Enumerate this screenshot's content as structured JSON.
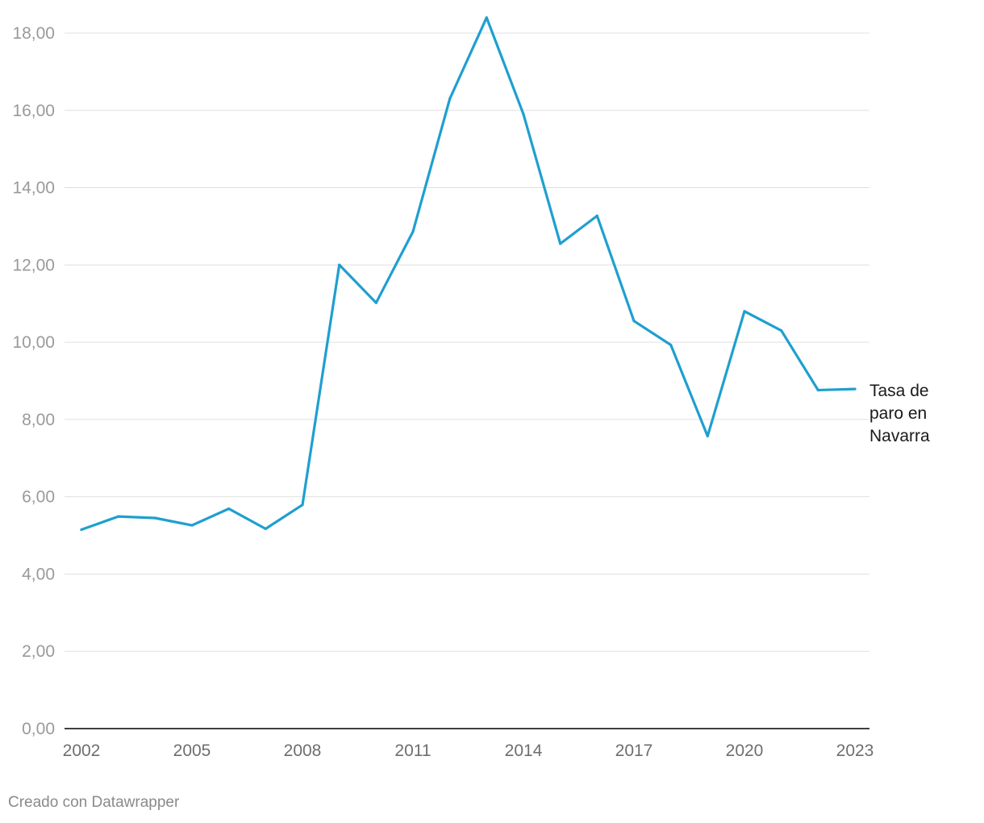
{
  "chart_data": {
    "type": "line",
    "title": "",
    "xlabel": "",
    "ylabel": "",
    "x": [
      2002,
      2003,
      2004,
      2005,
      2006,
      2007,
      2008,
      2009,
      2010,
      2011,
      2012,
      2013,
      2014,
      2015,
      2016,
      2017,
      2018,
      2019,
      2020,
      2021,
      2022,
      2023
    ],
    "series": [
      {
        "name": "Tasa de paro en Navarra",
        "label_lines": [
          "Tasa de",
          "paro en",
          "Navarra"
        ],
        "color": "#1f9fd0",
        "values": [
          5.15,
          5.49,
          5.45,
          5.26,
          5.69,
          5.17,
          5.79,
          12.0,
          11.02,
          12.86,
          16.3,
          18.4,
          15.9,
          12.55,
          13.27,
          10.55,
          9.93,
          7.57,
          10.8,
          10.3,
          8.76,
          8.79
        ]
      }
    ],
    "y_ticks": [
      "0,00",
      "2,00",
      "4,00",
      "6,00",
      "8,00",
      "10,00",
      "12,00",
      "14,00",
      "16,00",
      "18,00"
    ],
    "y_tick_values": [
      0,
      2,
      4,
      6,
      8,
      10,
      12,
      14,
      16,
      18
    ],
    "x_ticks": [
      "2002",
      "2005",
      "2008",
      "2011",
      "2014",
      "2017",
      "2020",
      "2023"
    ],
    "x_tick_values": [
      2002,
      2005,
      2008,
      2011,
      2014,
      2017,
      2020,
      2023
    ],
    "ylim": [
      0,
      18
    ],
    "xlim": [
      2002,
      2023
    ],
    "grid": true,
    "legend": "inline-right"
  },
  "footer": {
    "credit": "Creado con Datawrapper"
  }
}
